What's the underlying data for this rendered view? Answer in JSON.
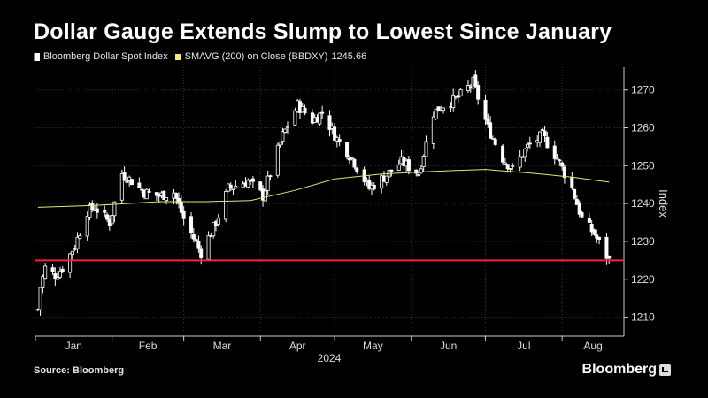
{
  "title": "Dollar Gauge Extends Slump to Lowest Since January",
  "legend": {
    "series1": "Bloomberg Dollar Spot Index",
    "series2": "SMAVG (200)  on Close (BBDXY)",
    "series2_value": "1245.66"
  },
  "source": "Source: Bloomberg",
  "brand": "Bloomberg",
  "colors": {
    "background": "#000000",
    "candle": "#ffffff",
    "moving_average": "#e8e27a",
    "level_line": "#ff1f3d",
    "grid": "#333333"
  },
  "chart_data": {
    "type": "candlestick",
    "ylabel": "Index",
    "ylim": [
      1205,
      1276
    ],
    "yticks": [
      1210,
      1220,
      1230,
      1240,
      1250,
      1260,
      1270
    ],
    "year_label": "2024",
    "months": [
      "Jan",
      "Feb",
      "Mar",
      "Apr",
      "May",
      "Jun",
      "Jul",
      "Aug"
    ],
    "grid": true,
    "horizontal_line": 1225,
    "moving_average_final": 1245.66,
    "close_series": [
      {
        "date": "2024-01-02",
        "close": 1212
      },
      {
        "date": "2024-01-03",
        "close": 1218
      },
      {
        "date": "2024-01-05",
        "close": 1223
      },
      {
        "date": "2024-01-09",
        "close": 1221
      },
      {
        "date": "2024-01-12",
        "close": 1223
      },
      {
        "date": "2024-01-17",
        "close": 1229
      },
      {
        "date": "2024-01-22",
        "close": 1238
      },
      {
        "date": "2024-01-25",
        "close": 1239
      },
      {
        "date": "2024-01-31",
        "close": 1235
      },
      {
        "date": "2024-02-05",
        "close": 1248
      },
      {
        "date": "2024-02-09",
        "close": 1246
      },
      {
        "date": "2024-02-14",
        "close": 1243
      },
      {
        "date": "2024-02-20",
        "close": 1242
      },
      {
        "date": "2024-02-26",
        "close": 1243
      },
      {
        "date": "2024-03-01",
        "close": 1236
      },
      {
        "date": "2024-03-08",
        "close": 1227
      },
      {
        "date": "2024-03-14",
        "close": 1235
      },
      {
        "date": "2024-03-19",
        "close": 1244
      },
      {
        "date": "2024-03-27",
        "close": 1246
      },
      {
        "date": "2024-04-02",
        "close": 1242
      },
      {
        "date": "2024-04-10",
        "close": 1258
      },
      {
        "date": "2024-04-16",
        "close": 1266
      },
      {
        "date": "2024-04-22",
        "close": 1262
      },
      {
        "date": "2024-04-26",
        "close": 1264
      },
      {
        "date": "2024-05-02",
        "close": 1257
      },
      {
        "date": "2024-05-08",
        "close": 1252
      },
      {
        "date": "2024-05-15",
        "close": 1244
      },
      {
        "date": "2024-05-21",
        "close": 1247
      },
      {
        "date": "2024-05-28",
        "close": 1251
      },
      {
        "date": "2024-06-04",
        "close": 1248
      },
      {
        "date": "2024-06-10",
        "close": 1264
      },
      {
        "date": "2024-06-14",
        "close": 1266
      },
      {
        "date": "2024-06-20",
        "close": 1268
      },
      {
        "date": "2024-06-26",
        "close": 1272
      },
      {
        "date": "2024-07-02",
        "close": 1260
      },
      {
        "date": "2024-07-08",
        "close": 1252
      },
      {
        "date": "2024-07-12",
        "close": 1249
      },
      {
        "date": "2024-07-18",
        "close": 1255
      },
      {
        "date": "2024-07-24",
        "close": 1258
      },
      {
        "date": "2024-07-30",
        "close": 1252
      },
      {
        "date": "2024-08-05",
        "close": 1244
      },
      {
        "date": "2024-08-09",
        "close": 1236
      },
      {
        "date": "2024-08-14",
        "close": 1232
      },
      {
        "date": "2024-08-20",
        "close": 1225
      }
    ],
    "moving_average": [
      {
        "date": "2024-01-02",
        "value": 1239
      },
      {
        "date": "2024-01-25",
        "value": 1239.5
      },
      {
        "date": "2024-02-20",
        "value": 1240.5
      },
      {
        "date": "2024-03-10",
        "value": 1240.5
      },
      {
        "date": "2024-03-28",
        "value": 1240.8
      },
      {
        "date": "2024-04-15",
        "value": 1243.5
      },
      {
        "date": "2024-05-01",
        "value": 1246.5
      },
      {
        "date": "2024-05-20",
        "value": 1247.8
      },
      {
        "date": "2024-06-10",
        "value": 1248.5
      },
      {
        "date": "2024-07-01",
        "value": 1249
      },
      {
        "date": "2024-07-20",
        "value": 1248
      },
      {
        "date": "2024-08-05",
        "value": 1247
      },
      {
        "date": "2024-08-20",
        "value": 1245.66
      }
    ]
  }
}
